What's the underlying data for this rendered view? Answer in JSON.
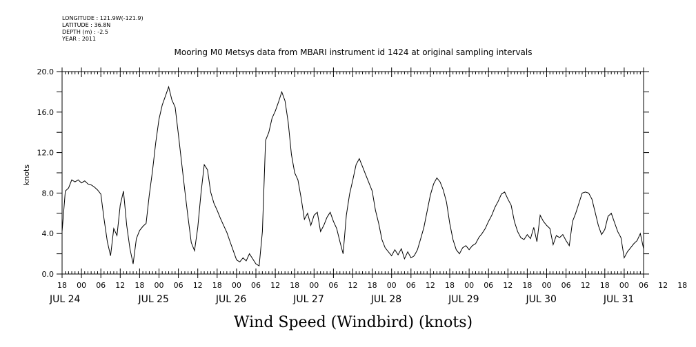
{
  "header_info": {
    "longitude": "LONGITUDE : 121.9W(-121.9)",
    "latitude": "LATITUDE : 36.8N",
    "depth": "DEPTH (m) : -2.5",
    "year": "YEAR : 2011"
  },
  "chart_data": {
    "type": "line",
    "title": "Mooring M0 Metsys data from MBARI instrument id 1424 at original sampling intervals",
    "xlabel": "Wind Speed (Windbird) (knots)",
    "ylabel": "knots",
    "ylim": [
      0,
      20
    ],
    "xlim_hours": [
      -6,
      174
    ],
    "y_ticks": [
      "0.0",
      "4.0",
      "8.0",
      "12.0",
      "16.0",
      "20.0"
    ],
    "x_hour_labels": [
      "18",
      "00",
      "06",
      "12",
      "18",
      "00",
      "06",
      "12",
      "18",
      "00",
      "06",
      "12",
      "18",
      "00",
      "06",
      "12",
      "18",
      "00",
      "06",
      "12",
      "18",
      "00",
      "06",
      "12",
      "18",
      "00",
      "06",
      "12",
      "18",
      "00",
      "06",
      "12",
      "18"
    ],
    "x_date_labels": [
      "JUL 24",
      "JUL 25",
      "JUL 26",
      "JUL 27",
      "JUL 28",
      "JUL 29",
      "JUL 30",
      "JUL 31"
    ],
    "series": [
      {
        "color": "#000000",
        "points": [
          [
            -6,
            4.2
          ],
          [
            -5,
            8.2
          ],
          [
            -4,
            8.5
          ],
          [
            -3,
            9.3
          ],
          [
            -2,
            9.1
          ],
          [
            -1,
            9.3
          ],
          [
            0,
            9.0
          ],
          [
            1,
            9.2
          ],
          [
            2,
            8.9
          ],
          [
            3,
            8.8
          ],
          [
            4,
            8.6
          ],
          [
            5,
            8.3
          ],
          [
            6,
            7.9
          ],
          [
            7,
            5.4
          ],
          [
            8,
            3.2
          ],
          [
            9,
            1.8
          ],
          [
            10,
            4.5
          ],
          [
            11,
            3.8
          ],
          [
            12,
            6.8
          ],
          [
            13,
            8.2
          ],
          [
            14,
            4.8
          ],
          [
            15,
            2.5
          ],
          [
            16,
            1.0
          ],
          [
            17,
            3.5
          ],
          [
            18,
            4.3
          ],
          [
            19,
            4.7
          ],
          [
            20,
            5.0
          ],
          [
            21,
            7.8
          ],
          [
            22,
            10.2
          ],
          [
            23,
            13.0
          ],
          [
            24,
            15.3
          ],
          [
            25,
            16.7
          ],
          [
            26,
            17.6
          ],
          [
            27,
            18.5
          ],
          [
            28,
            17.2
          ],
          [
            29,
            16.5
          ],
          [
            30,
            13.8
          ],
          [
            31,
            11.0
          ],
          [
            32,
            8.2
          ],
          [
            33,
            5.6
          ],
          [
            34,
            3.1
          ],
          [
            35,
            2.3
          ],
          [
            36,
            4.6
          ],
          [
            37,
            8.0
          ],
          [
            38,
            10.8
          ],
          [
            39,
            10.3
          ],
          [
            40,
            8.1
          ],
          [
            41,
            7.0
          ],
          [
            42,
            6.3
          ],
          [
            43,
            5.5
          ],
          [
            44,
            4.8
          ],
          [
            45,
            4.1
          ],
          [
            46,
            3.2
          ],
          [
            47,
            2.3
          ],
          [
            48,
            1.4
          ],
          [
            49,
            1.2
          ],
          [
            50,
            1.6
          ],
          [
            51,
            1.3
          ],
          [
            52,
            2.0
          ],
          [
            53,
            1.5
          ],
          [
            54,
            1.0
          ],
          [
            55,
            0.8
          ],
          [
            56,
            4.2
          ],
          [
            57,
            13.2
          ],
          [
            58,
            14.0
          ],
          [
            59,
            15.4
          ],
          [
            60,
            16.1
          ],
          [
            61,
            17.0
          ],
          [
            62,
            18.0
          ],
          [
            63,
            17.1
          ],
          [
            64,
            15.0
          ],
          [
            65,
            11.8
          ],
          [
            66,
            10.0
          ],
          [
            67,
            9.3
          ],
          [
            68,
            7.5
          ],
          [
            69,
            5.4
          ],
          [
            70,
            6.0
          ],
          [
            71,
            4.8
          ],
          [
            72,
            5.8
          ],
          [
            73,
            6.1
          ],
          [
            74,
            4.2
          ],
          [
            75,
            4.8
          ],
          [
            76,
            5.6
          ],
          [
            77,
            6.1
          ],
          [
            78,
            5.2
          ],
          [
            79,
            4.5
          ],
          [
            80,
            3.2
          ],
          [
            81,
            2.0
          ],
          [
            82,
            5.8
          ],
          [
            83,
            7.9
          ],
          [
            84,
            9.3
          ],
          [
            85,
            10.8
          ],
          [
            86,
            11.4
          ],
          [
            87,
            10.6
          ],
          [
            88,
            9.8
          ],
          [
            89,
            9.0
          ],
          [
            90,
            8.2
          ],
          [
            91,
            6.3
          ],
          [
            92,
            5.0
          ],
          [
            93,
            3.4
          ],
          [
            94,
            2.6
          ],
          [
            95,
            2.2
          ],
          [
            96,
            1.8
          ],
          [
            97,
            2.4
          ],
          [
            98,
            1.9
          ],
          [
            99,
            2.5
          ],
          [
            100,
            1.5
          ],
          [
            101,
            2.2
          ],
          [
            102,
            1.6
          ],
          [
            103,
            1.8
          ],
          [
            104,
            2.4
          ],
          [
            105,
            3.5
          ],
          [
            106,
            4.6
          ],
          [
            107,
            6.2
          ],
          [
            108,
            7.8
          ],
          [
            109,
            8.9
          ],
          [
            110,
            9.5
          ],
          [
            111,
            9.1
          ],
          [
            112,
            8.3
          ],
          [
            113,
            7.1
          ],
          [
            114,
            5.0
          ],
          [
            115,
            3.4
          ],
          [
            116,
            2.4
          ],
          [
            117,
            2.0
          ],
          [
            118,
            2.6
          ],
          [
            119,
            2.8
          ],
          [
            120,
            2.4
          ],
          [
            121,
            2.8
          ],
          [
            122,
            3.0
          ],
          [
            123,
            3.6
          ],
          [
            124,
            4.0
          ],
          [
            125,
            4.5
          ],
          [
            126,
            5.2
          ],
          [
            127,
            5.8
          ],
          [
            128,
            6.6
          ],
          [
            129,
            7.2
          ],
          [
            130,
            7.9
          ],
          [
            131,
            8.1
          ],
          [
            132,
            7.4
          ],
          [
            133,
            6.8
          ],
          [
            134,
            5.2
          ],
          [
            135,
            4.2
          ],
          [
            136,
            3.6
          ],
          [
            137,
            3.4
          ],
          [
            138,
            3.9
          ],
          [
            139,
            3.5
          ],
          [
            140,
            4.6
          ],
          [
            141,
            3.2
          ],
          [
            142,
            5.8
          ],
          [
            143,
            5.2
          ],
          [
            144,
            4.8
          ],
          [
            145,
            4.5
          ],
          [
            146,
            2.9
          ],
          [
            147,
            3.8
          ],
          [
            148,
            3.6
          ],
          [
            149,
            3.9
          ],
          [
            150,
            3.3
          ],
          [
            151,
            2.8
          ],
          [
            152,
            5.2
          ],
          [
            153,
            6.0
          ],
          [
            154,
            7.0
          ],
          [
            155,
            8.0
          ],
          [
            156,
            8.1
          ],
          [
            157,
            8.0
          ],
          [
            158,
            7.4
          ],
          [
            159,
            6.1
          ],
          [
            160,
            4.8
          ],
          [
            161,
            3.9
          ],
          [
            162,
            4.4
          ],
          [
            163,
            5.7
          ],
          [
            164,
            6.0
          ],
          [
            165,
            5.1
          ],
          [
            166,
            4.2
          ],
          [
            167,
            3.6
          ],
          [
            168,
            1.6
          ],
          [
            169,
            2.2
          ],
          [
            170,
            2.6
          ],
          [
            171,
            3.0
          ],
          [
            172,
            3.3
          ],
          [
            173,
            4.0
          ],
          [
            174,
            2.5
          ]
        ]
      }
    ],
    "grid": false
  }
}
